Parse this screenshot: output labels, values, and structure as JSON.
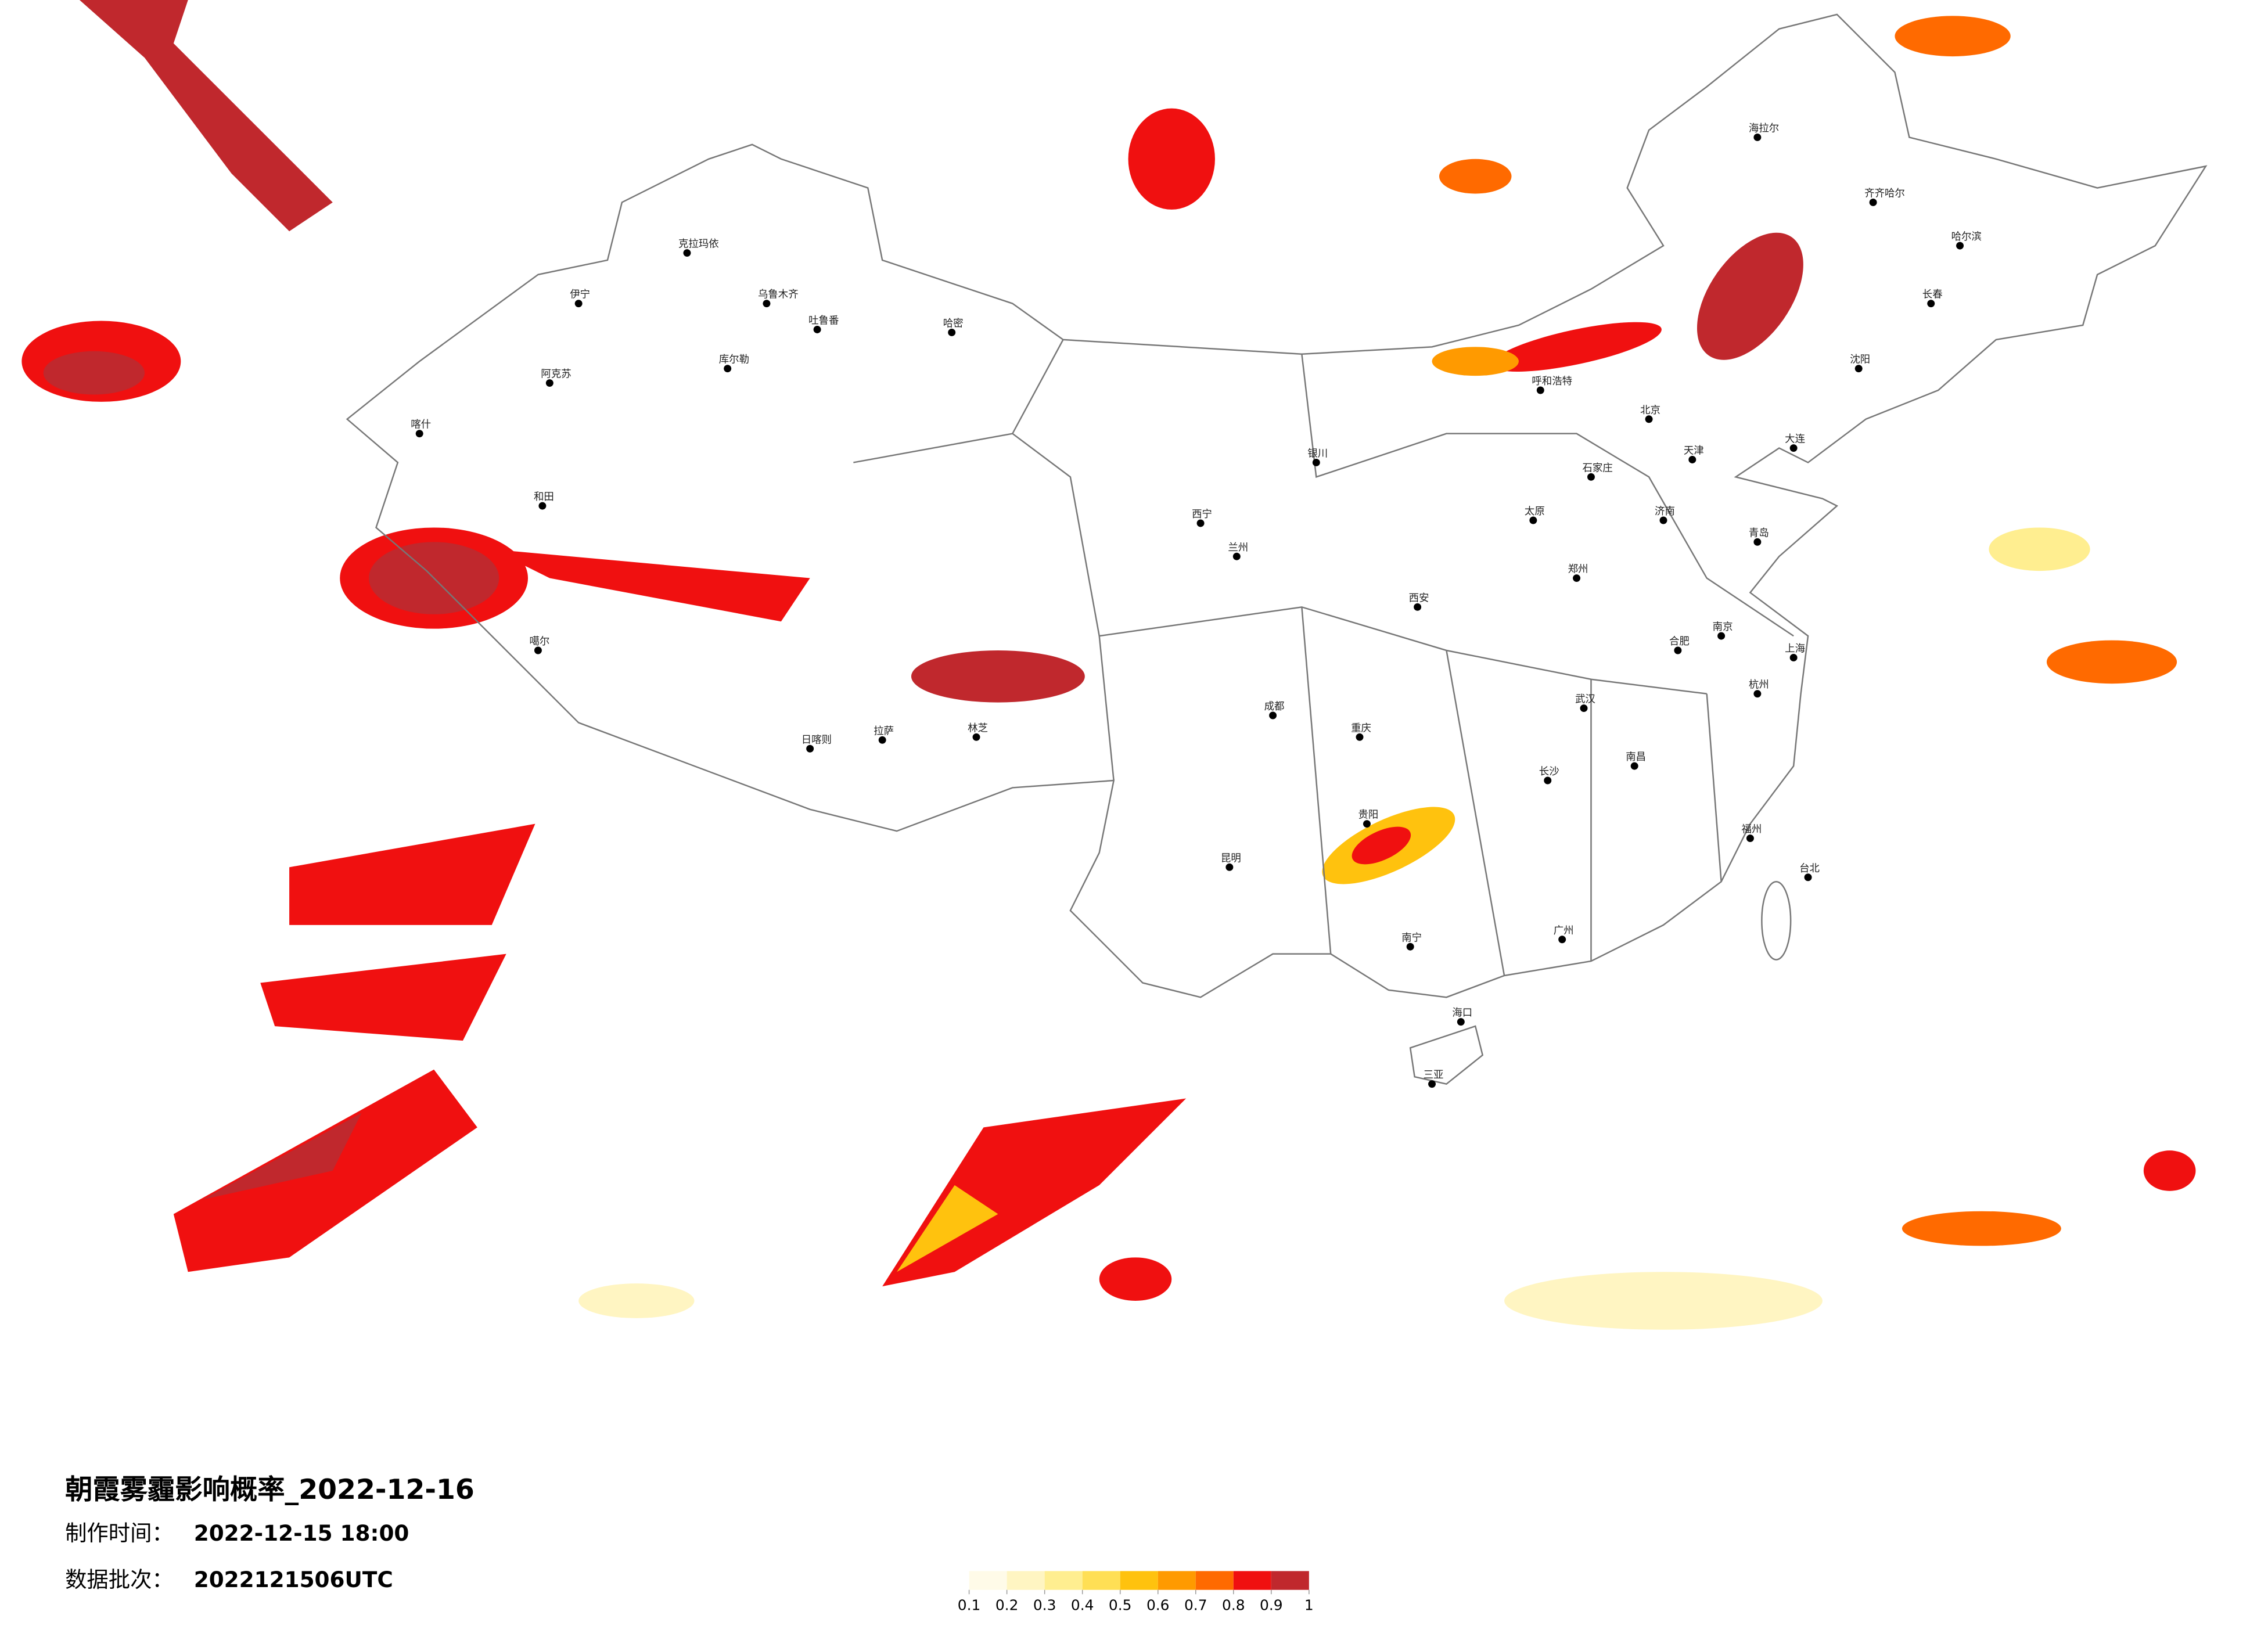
{
  "header": {
    "title": "朝霞雾霾影响概率_2022-12-16",
    "made_label": "制作时间：",
    "made_time": "2022-12-15 18:00",
    "batch_label": "数据批次：",
    "batch": "2022121506UTC"
  },
  "colorbar": {
    "ticks": [
      0.1,
      0.2,
      0.3,
      0.4,
      0.5,
      0.6,
      0.7,
      0.8,
      0.9,
      1
    ],
    "colors": [
      "#fffbe8",
      "#fff5c2",
      "#ffee90",
      "#ffdf55",
      "#ffc20e",
      "#ff9a00",
      "#ff6a00",
      "#f01010",
      "#c0282d"
    ]
  },
  "cities": [
    "克拉玛依",
    "乌鲁木齐",
    "伊宁",
    "吐鲁番",
    "哈密",
    "库尔勒",
    "阿克苏",
    "喀什",
    "和田",
    "噶尔",
    "日喀则",
    "拉萨",
    "林芝",
    "西宁",
    "兰州",
    "银川",
    "呼和浩特",
    "北京",
    "天津",
    "石家庄",
    "太原",
    "西安",
    "郑州",
    "济南",
    "青岛",
    "南京",
    "上海",
    "杭州",
    "合肥",
    "武汉",
    "长沙",
    "南昌",
    "福州",
    "台北",
    "广州",
    "南宁",
    "海口",
    "三亚",
    "贵阳",
    "昆明",
    "成都",
    "重庆",
    "哈尔滨",
    "长春",
    "沈阳",
    "大连",
    "齐齐哈尔",
    "海拉尔"
  ]
}
